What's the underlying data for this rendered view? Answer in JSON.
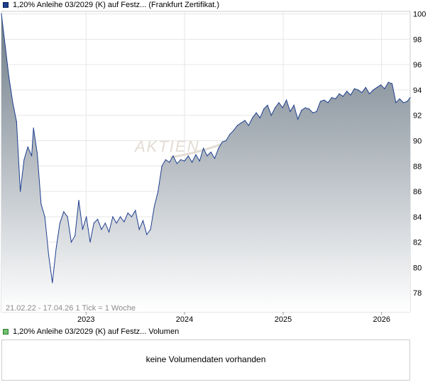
{
  "legend_price": {
    "text": "1,20% Anleihe 03/2029 (K) auf Festz... (Frankfurt Zertifikat.)",
    "color": "#1f3f8f"
  },
  "legend_volume": {
    "text": "1,20% Anleihe 03/2029 (K) auf Festz... Volumen",
    "color": "#6fbf6f"
  },
  "range_label": "21.02.22 - 17.04.26   1 Tick = 1 Woche",
  "watermark": "AKTIEN",
  "volume_message": "keine Volumendaten vorhanden",
  "chart_data": {
    "type": "area",
    "ylim": [
      76.5,
      100.2
    ],
    "xlim": [
      "2022-02-21",
      "2026-04-17"
    ],
    "y_ticks": [
      78,
      80,
      82,
      84,
      86,
      88,
      90,
      92,
      94,
      96,
      98,
      100
    ],
    "x_ticks": [
      {
        "label": "2023",
        "date": "2023-01-01"
      },
      {
        "label": "2024",
        "date": "2024-01-01"
      },
      {
        "label": "2025",
        "date": "2025-01-01"
      },
      {
        "label": "2026",
        "date": "2026-01-01"
      }
    ],
    "line_color": "#1f3f8f",
    "fill_top_color": "#6e7b87",
    "fill_bottom_color": "#ffffff",
    "grid": true,
    "series": [
      {
        "x": [
          "2022-02-21",
          "2022-03-07",
          "2022-03-21",
          "2022-04-04",
          "2022-04-18",
          "2022-05-02",
          "2022-05-16",
          "2022-05-30",
          "2022-06-13",
          "2022-06-20",
          "2022-07-04",
          "2022-07-18",
          "2022-08-01",
          "2022-08-15",
          "2022-08-29",
          "2022-09-12",
          "2022-09-26",
          "2022-10-10",
          "2022-10-24",
          "2022-11-07",
          "2022-11-21",
          "2022-12-05",
          "2022-12-19",
          "2023-01-02",
          "2023-01-16",
          "2023-01-30",
          "2023-02-13",
          "2023-02-27",
          "2023-03-13",
          "2023-03-27",
          "2023-04-10",
          "2023-04-24",
          "2023-05-08",
          "2023-05-22",
          "2023-06-05",
          "2023-06-19",
          "2023-07-03",
          "2023-07-17",
          "2023-07-31",
          "2023-08-14",
          "2023-08-28",
          "2023-09-11",
          "2023-09-25",
          "2023-10-09",
          "2023-10-23",
          "2023-11-06",
          "2023-11-20",
          "2023-12-04",
          "2023-12-18",
          "2024-01-01",
          "2024-01-15",
          "2024-01-29",
          "2024-02-12",
          "2024-02-26",
          "2024-03-11",
          "2024-03-25",
          "2024-04-08",
          "2024-04-22",
          "2024-05-06",
          "2024-05-20",
          "2024-06-03",
          "2024-06-17",
          "2024-07-01",
          "2024-07-15",
          "2024-07-29",
          "2024-08-12",
          "2024-08-26",
          "2024-09-09",
          "2024-09-23",
          "2024-10-07",
          "2024-10-21",
          "2024-11-04",
          "2024-11-18",
          "2024-12-02",
          "2024-12-16",
          "2024-12-30",
          "2025-01-13",
          "2025-01-27",
          "2025-02-10",
          "2025-02-24",
          "2025-03-10",
          "2025-03-24",
          "2025-04-07",
          "2025-04-21",
          "2025-05-05",
          "2025-05-19",
          "2025-06-02",
          "2025-06-16",
          "2025-06-30",
          "2025-07-14",
          "2025-07-28",
          "2025-08-11",
          "2025-08-25",
          "2025-09-08",
          "2025-09-22",
          "2025-10-06",
          "2025-10-20",
          "2025-11-03",
          "2025-11-17",
          "2025-12-01",
          "2025-12-15",
          "2025-12-29",
          "2026-01-12",
          "2026-01-26",
          "2026-02-09",
          "2026-02-23",
          "2026-03-09",
          "2026-03-23",
          "2026-04-06",
          "2026-04-17"
        ],
        "y": [
          100,
          97.5,
          95,
          93,
          91.5,
          86,
          88.5,
          89.5,
          88.8,
          91,
          89,
          85,
          84,
          81,
          78.8,
          81.5,
          83.5,
          84.4,
          84,
          82,
          82.5,
          85.3,
          83,
          84,
          82,
          83.5,
          83.8,
          83,
          83.5,
          82.8,
          84,
          83.5,
          84,
          83.6,
          84.3,
          84,
          84.5,
          83,
          83.7,
          82.6,
          83,
          84.8,
          86,
          88,
          88.5,
          88.3,
          88.8,
          88.2,
          88.5,
          88.4,
          88.8,
          88.3,
          88.9,
          88.4,
          89.4,
          88.8,
          89.1,
          88.6,
          89.4,
          89.9,
          90,
          90.5,
          90.8,
          91.2,
          91.4,
          91.6,
          91.2,
          91.8,
          92.2,
          91.8,
          92.5,
          92.8,
          92,
          92.6,
          93,
          92.6,
          93.2,
          92.3,
          92.8,
          91.7,
          92.4,
          92.6,
          92.5,
          92.2,
          92.3,
          93.1,
          93.2,
          93,
          93.4,
          93.3,
          93.7,
          93.5,
          93.9,
          93.6,
          94.1,
          94,
          93.8,
          94.2,
          93.7,
          94,
          94.2,
          94.4,
          94.1,
          94.6,
          94.5,
          93,
          93.3,
          93,
          93.1,
          93.4
        ]
      }
    ]
  }
}
